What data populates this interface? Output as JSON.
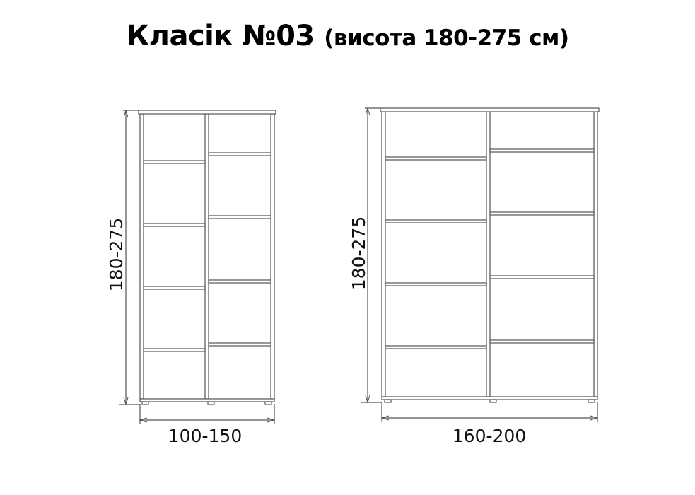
{
  "title": {
    "main": "Класік №03",
    "sub": "(висота 180-275 см)"
  },
  "wardrobes": [
    {
      "height_label": "180-275",
      "width_label": "100-150"
    },
    {
      "height_label": "180-275",
      "width_label": "160-200"
    }
  ],
  "colors": {
    "line": "#555555",
    "text": "#000000"
  }
}
